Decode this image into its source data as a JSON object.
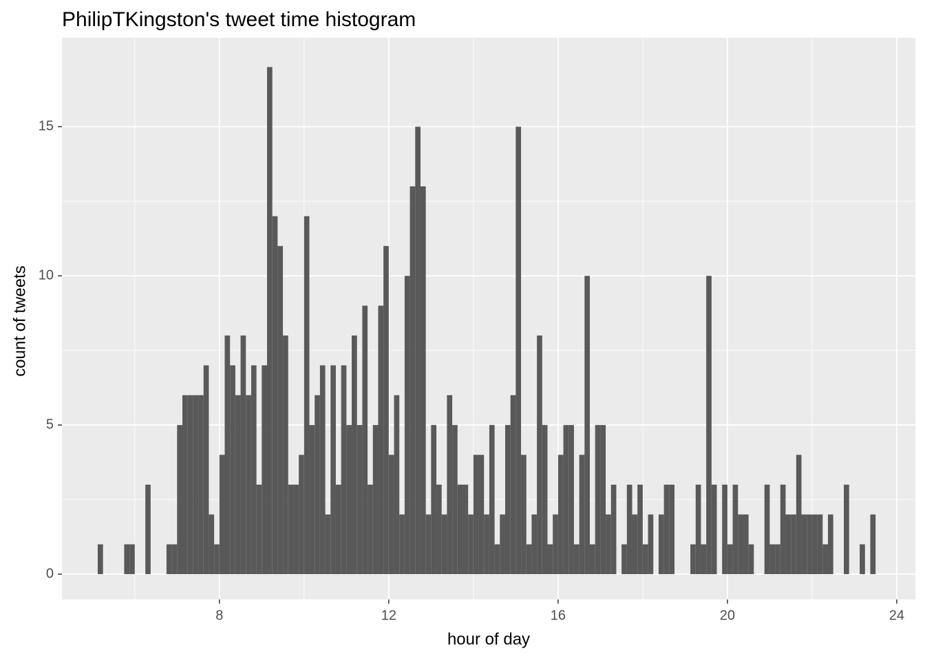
{
  "chart_data": {
    "type": "histogram",
    "title": "PhilipTKingston's tweet time histogram",
    "x_label": "hour of day",
    "y_label": "count of tweets",
    "color": "#595959",
    "background": "#ebebeb",
    "grid": true,
    "minor_grid": true,
    "xlim": [
      4.28,
      24.44
    ],
    "ylim": [
      -0.85,
      17.98
    ],
    "xticks": [
      8,
      12,
      16,
      20,
      24
    ],
    "yticks": [
      0,
      5,
      10,
      15
    ],
    "bins": [
      5.125,
      5.25,
      5.375,
      5.5,
      5.625,
      5.75,
      5.875,
      6,
      6.125,
      6.25,
      6.375,
      6.5,
      6.625,
      6.75,
      6.875,
      7,
      7.125,
      7.25,
      7.375,
      7.5,
      7.625,
      7.75,
      7.875,
      8,
      8.125,
      8.25,
      8.375,
      8.5,
      8.625,
      8.75,
      8.875,
      9,
      9.125,
      9.25,
      9.375,
      9.5,
      9.625,
      9.75,
      9.875,
      10,
      10.125,
      10.25,
      10.375,
      10.5,
      10.625,
      10.75,
      10.875,
      11,
      11.125,
      11.25,
      11.375,
      11.5,
      11.625,
      11.75,
      11.875,
      12,
      12.125,
      12.25,
      12.375,
      12.5,
      12.625,
      12.75,
      12.875,
      13,
      13.125,
      13.25,
      13.375,
      13.5,
      13.625,
      13.75,
      13.875,
      14,
      14.125,
      14.25,
      14.375,
      14.5,
      14.625,
      14.75,
      14.875,
      15,
      15.125,
      15.25,
      15.375,
      15.5,
      15.625,
      15.75,
      15.875,
      16,
      16.125,
      16.25,
      16.375,
      16.5,
      16.625,
      16.75,
      16.875,
      17,
      17.125,
      17.25,
      17.375,
      17.5,
      17.625,
      17.75,
      17.875,
      18,
      18.125,
      18.25,
      18.375,
      18.5,
      18.625,
      18.75,
      18.875,
      19,
      19.125,
      19.25,
      19.375,
      19.5,
      19.625,
      19.75,
      19.875,
      20,
      20.125,
      20.25,
      20.375,
      20.5,
      20.625,
      20.75,
      20.875,
      21,
      21.125,
      21.25,
      21.375,
      21.5,
      21.625,
      21.75,
      21.875,
      22,
      22.125,
      22.25,
      22.375,
      22.5,
      22.625,
      22.75,
      22.875,
      23,
      23.125,
      23.25,
      23.375,
      23.5
    ],
    "values": [
      1,
      0,
      0,
      0,
      0,
      1,
      1,
      0,
      0,
      3,
      0,
      0,
      0,
      1,
      1,
      5,
      6,
      6,
      6,
      6,
      7,
      2,
      1,
      4,
      8,
      7,
      6,
      8,
      6,
      7,
      3,
      7,
      17,
      12,
      11,
      8,
      3,
      3,
      4,
      12,
      5,
      6,
      7,
      2,
      7,
      3,
      7,
      5,
      8,
      5,
      9,
      3,
      5,
      9,
      11,
      4,
      6,
      2,
      10,
      13,
      15,
      13,
      2,
      5,
      3,
      2,
      6,
      5,
      3,
      3,
      2,
      4,
      4,
      2,
      5,
      1,
      2,
      5,
      6,
      15,
      4,
      1,
      2,
      8,
      5,
      1,
      2,
      4,
      5,
      5,
      1,
      4,
      10,
      1,
      5,
      5,
      2,
      3,
      0,
      1,
      3,
      2,
      3,
      1,
      2,
      0,
      2,
      3,
      3,
      0,
      0,
      0,
      1,
      3,
      1,
      10,
      3,
      0,
      3,
      1,
      3,
      2,
      2,
      1,
      0,
      0,
      3,
      1,
      1,
      3,
      2,
      2,
      4,
      2,
      2,
      2,
      2,
      1,
      2,
      0,
      0,
      3,
      0,
      0,
      1,
      0,
      2
    ]
  }
}
